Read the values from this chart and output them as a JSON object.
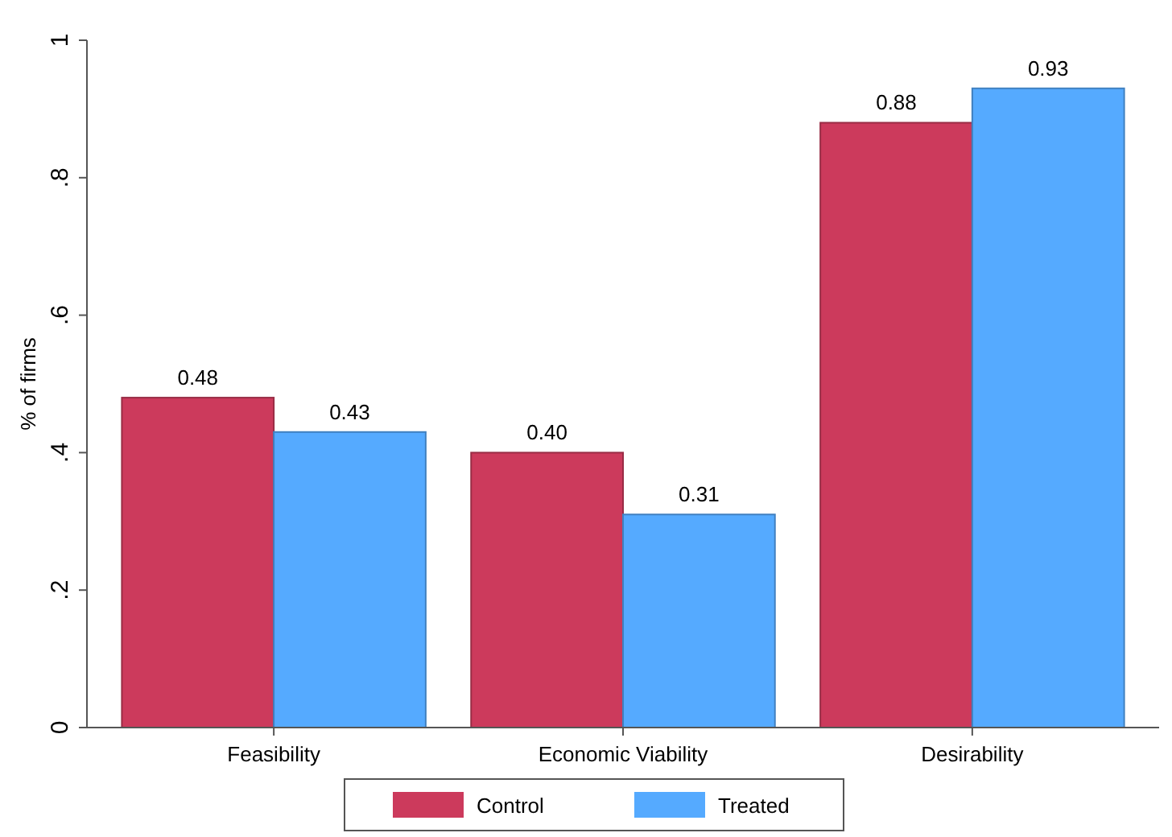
{
  "chart_data": {
    "type": "bar",
    "ylabel": "% of firms",
    "categories": [
      "Feasibility",
      "Economic Viability",
      "Desirability"
    ],
    "series": [
      {
        "name": "Control",
        "color": "#cc3a5c",
        "values": [
          0.48,
          0.4,
          0.88
        ],
        "value_labels": [
          "0.48",
          "0.40",
          "0.88"
        ]
      },
      {
        "name": "Treated",
        "color": "#55aaff",
        "values": [
          0.43,
          0.31,
          0.93
        ],
        "value_labels": [
          "0.43",
          "0.31",
          "0.93"
        ]
      }
    ],
    "ylim": [
      0,
      1
    ],
    "yticks": [
      0,
      {
        "value": 0.2,
        "label": ".2"
      },
      {
        "value": 0.4,
        "label": ".4"
      },
      {
        "value": 0.6,
        "label": ".6"
      },
      {
        "value": 0.8,
        "label": ".8"
      },
      1
    ],
    "grid": false,
    "legend": "bottom"
  }
}
